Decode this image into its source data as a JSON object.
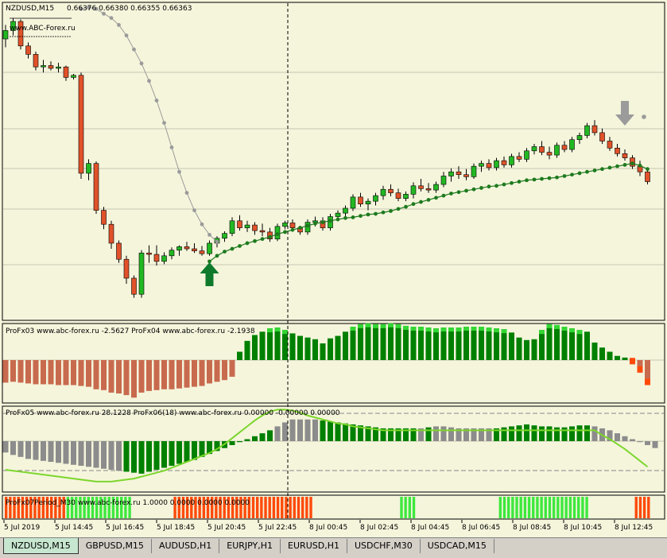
{
  "chart_data": [
    {
      "type": "candlestick",
      "symbol_label": "NZDUSD,M15",
      "ohlc_label": "0.66376 0.66380 0.66355 0.66363",
      "watermark": "www.ABC-Forex.ru",
      "candles": [
        [
          0.664,
          0.6642,
          0.66388,
          0.66412
        ],
        [
          0.66412,
          0.6643,
          0.66405,
          0.66425
        ],
        [
          0.66425,
          0.66428,
          0.66385,
          0.6639
        ],
        [
          0.6639,
          0.66395,
          0.66372,
          0.66378
        ],
        [
          0.66378,
          0.66382,
          0.66355,
          0.6636
        ],
        [
          0.6636,
          0.6637,
          0.66352,
          0.66362
        ],
        [
          0.66362,
          0.66368,
          0.66355,
          0.66358
        ],
        [
          0.66358,
          0.66366,
          0.66352,
          0.6636
        ],
        [
          0.6636,
          0.66362,
          0.6634,
          0.66345
        ],
        [
          0.66345,
          0.6635,
          0.66342,
          0.66348
        ],
        [
          0.66348,
          0.66352,
          0.662,
          0.66208
        ],
        [
          0.66208,
          0.66228,
          0.66198,
          0.66222
        ],
        [
          0.66222,
          0.66225,
          0.6615,
          0.66155
        ],
        [
          0.66155,
          0.6616,
          0.66128,
          0.66135
        ],
        [
          0.66135,
          0.6614,
          0.661,
          0.66108
        ],
        [
          0.66108,
          0.66112,
          0.6608,
          0.66085
        ],
        [
          0.66085,
          0.6609,
          0.6605,
          0.66058
        ],
        [
          0.66058,
          0.66062,
          0.6603,
          0.66035
        ],
        [
          0.66035,
          0.66098,
          0.6603,
          0.66094
        ],
        [
          0.66094,
          0.66105,
          0.6608,
          0.66092
        ],
        [
          0.66092,
          0.66105,
          0.66076,
          0.66082
        ],
        [
          0.66082,
          0.66095,
          0.66078,
          0.6609
        ],
        [
          0.6609,
          0.66102,
          0.66085,
          0.66098
        ],
        [
          0.66098,
          0.66105,
          0.6609,
          0.66103
        ],
        [
          0.66103,
          0.6611,
          0.66097,
          0.661
        ],
        [
          0.661,
          0.66108,
          0.66094,
          0.66097
        ],
        [
          0.66097,
          0.66104,
          0.6609,
          0.66093
        ],
        [
          0.66093,
          0.66112,
          0.6609,
          0.66108
        ],
        [
          0.66108,
          0.66118,
          0.66102,
          0.66115
        ],
        [
          0.66115,
          0.66125,
          0.6611,
          0.66122
        ],
        [
          0.66122,
          0.66145,
          0.66118,
          0.6614
        ],
        [
          0.6614,
          0.66148,
          0.66126,
          0.6613
        ],
        [
          0.6613,
          0.6614,
          0.66124,
          0.66134
        ],
        [
          0.66134,
          0.66138,
          0.6612,
          0.66126
        ],
        [
          0.66126,
          0.66136,
          0.66118,
          0.66124
        ],
        [
          0.66124,
          0.6613,
          0.6611,
          0.66114
        ],
        [
          0.66114,
          0.66136,
          0.66111,
          0.66132
        ],
        [
          0.66132,
          0.6614,
          0.66128,
          0.66137
        ],
        [
          0.66137,
          0.66142,
          0.66126,
          0.6613
        ],
        [
          0.6613,
          0.66133,
          0.6612,
          0.66124
        ],
        [
          0.66124,
          0.66142,
          0.6612,
          0.66138
        ],
        [
          0.66138,
          0.66146,
          0.66132,
          0.6614
        ],
        [
          0.6614,
          0.66145,
          0.66126,
          0.6613
        ],
        [
          0.6613,
          0.6615,
          0.66126,
          0.66146
        ],
        [
          0.66146,
          0.66155,
          0.6614,
          0.66151
        ],
        [
          0.66151,
          0.66162,
          0.66146,
          0.66158
        ],
        [
          0.66158,
          0.66178,
          0.66154,
          0.66174
        ],
        [
          0.66174,
          0.6618,
          0.6616,
          0.66164
        ],
        [
          0.66164,
          0.66172,
          0.66155,
          0.66168
        ],
        [
          0.66168,
          0.6618,
          0.66162,
          0.66176
        ],
        [
          0.66176,
          0.6619,
          0.6617,
          0.66185
        ],
        [
          0.66185,
          0.66192,
          0.66175,
          0.6618
        ],
        [
          0.6618,
          0.66186,
          0.66168,
          0.66172
        ],
        [
          0.66172,
          0.66182,
          0.66168,
          0.66178
        ],
        [
          0.66178,
          0.66195,
          0.66172,
          0.6619
        ],
        [
          0.6619,
          0.662,
          0.66182,
          0.66186
        ],
        [
          0.66186,
          0.66194,
          0.6618,
          0.66184
        ],
        [
          0.66184,
          0.66196,
          0.6618,
          0.66192
        ],
        [
          0.66192,
          0.6621,
          0.66188,
          0.66204
        ],
        [
          0.66204,
          0.66215,
          0.66196,
          0.6621
        ],
        [
          0.6621,
          0.66218,
          0.662,
          0.66206
        ],
        [
          0.66206,
          0.66214,
          0.66198,
          0.66203
        ],
        [
          0.66203,
          0.66222,
          0.662,
          0.66218
        ],
        [
          0.66218,
          0.66226,
          0.6621,
          0.66222
        ],
        [
          0.66222,
          0.66228,
          0.66212,
          0.66216
        ],
        [
          0.66216,
          0.6623,
          0.66212,
          0.66226
        ],
        [
          0.66226,
          0.66232,
          0.66216,
          0.6622
        ],
        [
          0.6622,
          0.66236,
          0.66216,
          0.66232
        ],
        [
          0.66232,
          0.66238,
          0.66224,
          0.66228
        ],
        [
          0.66228,
          0.66244,
          0.66224,
          0.6624
        ],
        [
          0.6624,
          0.6625,
          0.66235,
          0.66246
        ],
        [
          0.66246,
          0.66254,
          0.66234,
          0.66238
        ],
        [
          0.66238,
          0.66246,
          0.66228,
          0.66234
        ],
        [
          0.66234,
          0.66252,
          0.6623,
          0.66248
        ],
        [
          0.66248,
          0.66254,
          0.66238,
          0.66242
        ],
        [
          0.66242,
          0.6626,
          0.66238,
          0.66256
        ],
        [
          0.66256,
          0.66266,
          0.6625,
          0.66262
        ],
        [
          0.66262,
          0.6628,
          0.66258,
          0.66276
        ],
        [
          0.66276,
          0.66284,
          0.66262,
          0.66266
        ],
        [
          0.66266,
          0.66272,
          0.6625,
          0.66254
        ],
        [
          0.66254,
          0.6626,
          0.6624,
          0.66244
        ],
        [
          0.66244,
          0.6625,
          0.66232,
          0.66236
        ],
        [
          0.66236,
          0.66242,
          0.66226,
          0.6623
        ],
        [
          0.6623,
          0.66234,
          0.66214,
          0.66218
        ],
        [
          0.66218,
          0.66226,
          0.66204,
          0.6621
        ],
        [
          0.6621,
          0.66214,
          0.66192,
          0.66196
        ]
      ],
      "fast_line": [
        0.66443,
        0.66445,
        0.66443,
        0.66436,
        0.6643,
        0.6642,
        0.66405,
        0.66385,
        0.66365,
        0.6634,
        0.66312,
        0.6628,
        0.66245,
        0.6621,
        0.6618,
        0.66155,
        0.66135,
        0.6612,
        0.6611
      ],
      "slow_line": [
        0.66082,
        0.6609,
        0.66096,
        0.661,
        0.66104,
        0.66108,
        0.66111,
        0.66114,
        0.66117,
        0.66121,
        0.66124,
        0.66127,
        0.6613,
        0.66133,
        0.66136,
        0.66138,
        0.6614,
        0.66142,
        0.66144,
        0.66145,
        0.66147,
        0.66149,
        0.6615,
        0.66152,
        0.66154,
        0.66157,
        0.6616,
        0.66164,
        0.66167,
        0.6617,
        0.66173,
        0.66176,
        0.66179,
        0.66181,
        0.66183,
        0.66185,
        0.66187,
        0.66189,
        0.6619,
        0.66192,
        0.66194,
        0.66196,
        0.66198,
        0.66199,
        0.662,
        0.66201,
        0.66202,
        0.66204,
        0.66206,
        0.66208,
        0.6621,
        0.66212,
        0.66214,
        0.66216,
        0.66218,
        0.6622,
        0.66222,
        0.66219,
        0.66214
      ],
      "arrows": [
        {
          "type": "buy",
          "index": 27
        },
        {
          "type": "sell",
          "index": 82
        }
      ]
    },
    {
      "type": "bar",
      "label": "ProFx03 www.abc-forex.ru -2.5627  ProFx04 www.abc-forex.ru -2.1938",
      "values": [
        -2.7,
        -2.6,
        -2.7,
        -2.8,
        -2.9,
        -2.9,
        -2.9,
        -3.0,
        -3.0,
        -3.0,
        -3.1,
        -3.2,
        -3.5,
        -3.6,
        -3.9,
        -4.0,
        -4.2,
        -4.5,
        -3.9,
        -3.7,
        -3.6,
        -3.5,
        -3.5,
        -3.4,
        -3.3,
        -3.2,
        -3.1,
        -2.8,
        -2.6,
        -2.4,
        -2.0,
        1.0,
        2.3,
        3.0,
        3.4,
        3.8,
        3.9,
        3.6,
        3.2,
        2.9,
        2.7,
        2.5,
        2.0,
        2.6,
        2.9,
        3.4,
        4.0,
        4.3,
        4.4,
        4.3,
        4.3,
        4.4,
        4.3,
        4.1,
        4.0,
        4.0,
        3.9,
        3.8,
        3.9,
        3.9,
        3.9,
        4.0,
        4.0,
        4.0,
        3.9,
        3.8,
        3.7,
        3.3,
        2.7,
        2.4,
        2.5,
        3.6,
        4.3,
        4.2,
        4.0,
        3.8,
        3.6,
        3.4,
        2.1,
        1.5,
        1.0,
        0.5,
        0.3,
        -0.5,
        -1.5,
        -3.0
      ]
    },
    {
      "type": "bar",
      "label": "ProFx05 www.abc-forex.ru 28.1228  ProFx06(18) www.abc-forex.ru 0.00000 -0.00000 0.00000",
      "values": [
        -23,
        -28,
        -32,
        -36,
        -38,
        -40,
        -42,
        -44,
        -46,
        -48,
        -50,
        -52,
        -54,
        -56,
        -58,
        -60,
        -62,
        -64,
        -66,
        -62,
        -58,
        -54,
        -50,
        -46,
        -42,
        -38,
        -32,
        -26,
        -20,
        -14,
        -8,
        -2,
        4,
        10,
        16,
        22,
        30,
        38,
        44,
        44,
        44,
        44,
        42,
        40,
        38,
        36,
        34,
        32,
        30,
        28,
        26,
        26,
        26,
        26,
        26,
        26,
        28,
        30,
        30,
        28,
        26,
        26,
        26,
        26,
        26,
        26,
        28,
        30,
        32,
        34,
        32,
        30,
        30,
        28,
        28,
        30,
        32,
        32,
        30,
        26,
        22,
        16,
        10,
        4,
        -2,
        -8,
        -14
      ],
      "signal": [
        -58,
        -60,
        -62,
        -64,
        -66,
        -68,
        -70,
        -72,
        -74,
        -76,
        -78,
        -80,
        -82,
        -82,
        -82,
        -80,
        -78,
        -76,
        -72,
        -68,
        -64,
        -60,
        -54,
        -48,
        -42,
        -36,
        -30,
        -24,
        -16,
        -6,
        6,
        18,
        30,
        42,
        52,
        60,
        64,
        64,
        62,
        58,
        52,
        48,
        44,
        40,
        36,
        34,
        30,
        28,
        26,
        24,
        22,
        22,
        22,
        22,
        22,
        22,
        22,
        22,
        22,
        22,
        22,
        22,
        22,
        22,
        22,
        22,
        22,
        22,
        22,
        22,
        22,
        22,
        22,
        22,
        22,
        22,
        22,
        22,
        22,
        12,
        4,
        -6,
        -16,
        -28,
        -40,
        -52
      ]
    },
    {
      "type": "bar",
      "label": "ProFx07Period_M30 www.abc-forex.ru 1.0000 0.0000 0.0000 0.0000",
      "states": "rrrrrrrrrrrrrrrggggggggggggggggnnnnnnnnnnrrrrrrrrrrrrrrrrrrrrrrrrrrrrrrrrrrnnnnnnnnnnnnnnnnnnnnnggggnnnnnnnnnnnnnnnnnnnnggggggggggggggggggggggnnnnnnnnnnnrrrr"
    }
  ],
  "time_axis": [
    "5 Jul 2019",
    "5 Jul 14:45",
    "5 Jul 16:45",
    "5 Jul 18:45",
    "5 Jul 20:45",
    "5 Jul 22:45",
    "8 Jul 00:45",
    "8 Jul 02:45",
    "8 Jul 04:45",
    "8 Jul 06:45",
    "8 Jul 08:45",
    "8 Jul 10:45",
    "8 Jul 12:45"
  ],
  "colors": {
    "background": "#f5f5dc",
    "bull": "#22b822",
    "bear": "#e1522a",
    "indicator_bull": "#008000",
    "indicator_bull_light": "#34d634",
    "indicator_bear": "#c86a4e",
    "neutral": "#8c8c8c",
    "signal_line": "#7cd62c",
    "buy_arrow": "#0f7a2c",
    "sell_arrow": "#9b9b9b"
  },
  "tabs": [
    {
      "label": "NZDUSD,M15",
      "active": true
    },
    {
      "label": "GBPUSD,M15",
      "active": false
    },
    {
      "label": "AUDUSD,H1",
      "active": false
    },
    {
      "label": "EURJPY,H1",
      "active": false
    },
    {
      "label": "EURUSD,H1",
      "active": false
    },
    {
      "label": "USDCHF,M30",
      "active": false
    },
    {
      "label": "USDCAD,M15",
      "active": false
    }
  ]
}
